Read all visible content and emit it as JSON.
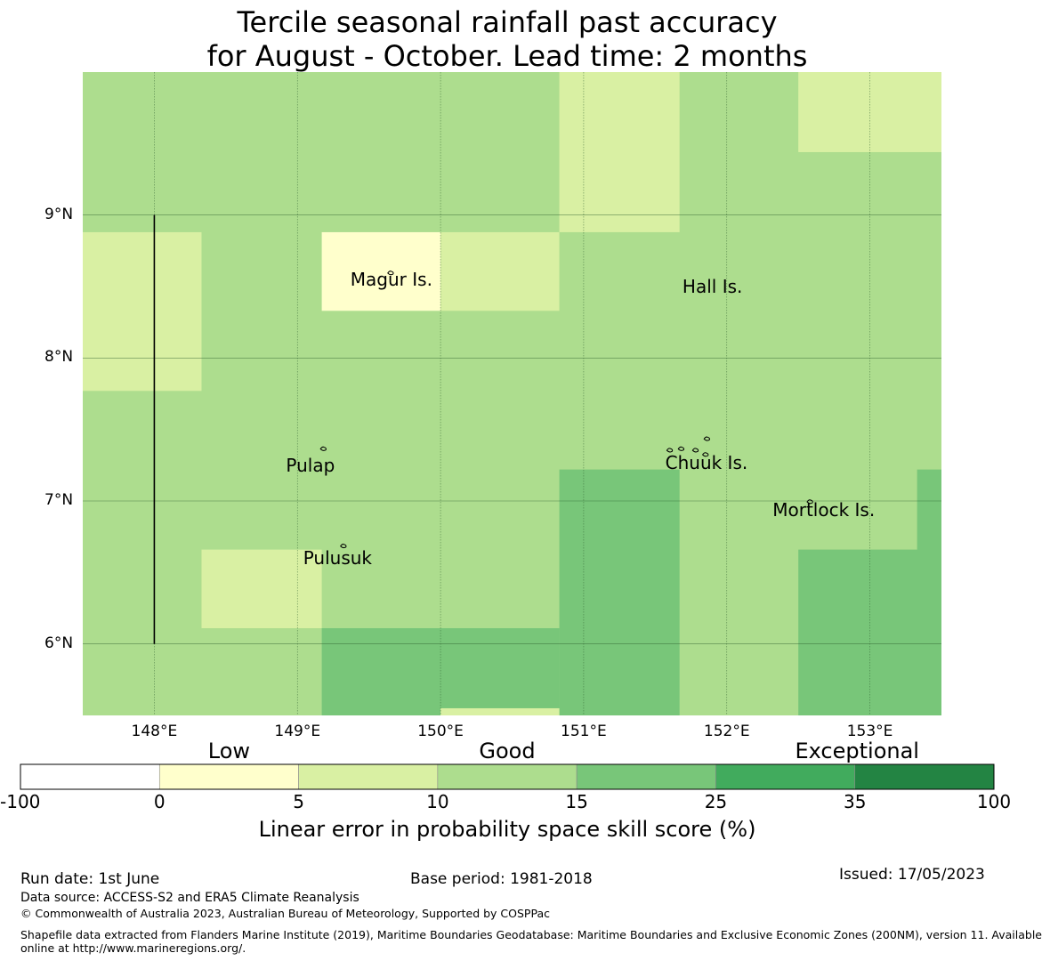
{
  "title": {
    "line1": "Tercile seasonal rainfall past accuracy",
    "line2": "for August - October. Lead time: 2 months"
  },
  "map": {
    "lon_range": [
      147.5,
      153.5
    ],
    "lat_range": [
      5.5,
      10.0
    ],
    "grid": true,
    "lat_ticks": [
      {
        "value": 9,
        "label": "9°N"
      },
      {
        "value": 8,
        "label": "8°N"
      },
      {
        "value": 7,
        "label": "7°N"
      },
      {
        "value": 6,
        "label": "6°N"
      }
    ],
    "lon_ticks": [
      {
        "value": 148,
        "label": "148°E"
      },
      {
        "value": 149,
        "label": "149°E"
      },
      {
        "value": 150,
        "label": "150°E"
      },
      {
        "value": 151,
        "label": "151°E"
      },
      {
        "value": 152,
        "label": "152°E"
      },
      {
        "value": 153,
        "label": "153°E"
      }
    ],
    "background_class": 3,
    "cells": [
      {
        "lon": [
          150.83,
          151.67
        ],
        "lat": [
          8.88,
          10.0
        ],
        "class": 2
      },
      {
        "lon": [
          152.5,
          153.5
        ],
        "lat": [
          9.44,
          10.0
        ],
        "class": 2
      },
      {
        "lon": [
          147.5,
          148.33
        ],
        "lat": [
          7.77,
          8.88
        ],
        "class": 2
      },
      {
        "lon": [
          149.17,
          150.0
        ],
        "lat": [
          8.33,
          8.88
        ],
        "class": 1
      },
      {
        "lon": [
          150.0,
          150.83
        ],
        "lat": [
          8.33,
          8.88
        ],
        "class": 2
      },
      {
        "lon": [
          148.33,
          149.17
        ],
        "lat": [
          6.11,
          6.66
        ],
        "class": 2
      },
      {
        "lon": [
          150.83,
          151.67
        ],
        "lat": [
          5.5,
          7.22
        ],
        "class": 4
      },
      {
        "lon": [
          149.17,
          150.83
        ],
        "lat": [
          5.5,
          6.11
        ],
        "class": 4
      },
      {
        "lon": [
          150.0,
          150.83
        ],
        "lat": [
          5.5,
          5.55
        ],
        "class": 2
      },
      {
        "lon": [
          152.5,
          153.5
        ],
        "lat": [
          5.5,
          6.66
        ],
        "class": 4
      },
      {
        "lon": [
          153.33,
          153.5
        ],
        "lat": [
          5.5,
          7.22
        ],
        "class": 4
      }
    ],
    "boundary_line": {
      "lon": 148.0,
      "lat": [
        6.0,
        9.0
      ]
    },
    "places": [
      {
        "name": "Magur Is.",
        "lon": 149.65,
        "lat": 8.55
      },
      {
        "name": "Hall Is.",
        "lon": 151.97,
        "lat": 8.5
      },
      {
        "name": "Pulap",
        "lon": 149.2,
        "lat": 7.25
      },
      {
        "name": "Chuuk Is.",
        "lon": 151.85,
        "lat": 7.27
      },
      {
        "name": "Mortlock Is.",
        "lon": 152.6,
        "lat": 6.94
      },
      {
        "name": "Pulusuk",
        "lon": 149.32,
        "lat": 6.6
      }
    ],
    "islands": [
      {
        "lon": 149.65,
        "lat": 8.6
      },
      {
        "lon": 149.18,
        "lat": 7.37
      },
      {
        "lon": 149.32,
        "lat": 6.69
      },
      {
        "lon": 151.6,
        "lat": 7.36
      },
      {
        "lon": 151.68,
        "lat": 7.37
      },
      {
        "lon": 151.78,
        "lat": 7.36
      },
      {
        "lon": 151.85,
        "lat": 7.33
      },
      {
        "lon": 151.86,
        "lat": 7.44
      },
      {
        "lon": 152.58,
        "lat": 7.0
      }
    ]
  },
  "colorbar": {
    "categories": [
      {
        "label": "Low",
        "at": 1.5
      },
      {
        "label": "Good",
        "at": 3.5
      },
      {
        "label": "Exceptional",
        "at": 6.4
      }
    ],
    "bounds": [
      "-100",
      "0",
      "5",
      "10",
      "15",
      "25",
      "35",
      "100"
    ],
    "colors": [
      "#ffffff",
      "#ffffcc",
      "#d9f0a3",
      "#addd8e",
      "#78c679",
      "#41ab5d",
      "#238443"
    ],
    "label": "Linear error in probability space skill score (%)"
  },
  "footer": {
    "run_date": "Run date: 1st June",
    "base_period": "Base period: 1981-2018",
    "issued": "Issued: 17/05/2023",
    "data_source": "Data source: ACCESS-S2 and ERA5 Climate Reanalysis",
    "copyright": "© Commonwealth of Australia 2023, Australian Bureau of Meteorology, Supported by COSPPac",
    "shapefile_line1": "Shapefile data extracted from Flanders Marine Institute (2019), Maritime Boundaries Geodatabase: Maritime Boundaries and Exclusive Economic Zones (200NM), version 11. Available",
    "shapefile_line2": "online at http://www.marineregions.org/."
  }
}
